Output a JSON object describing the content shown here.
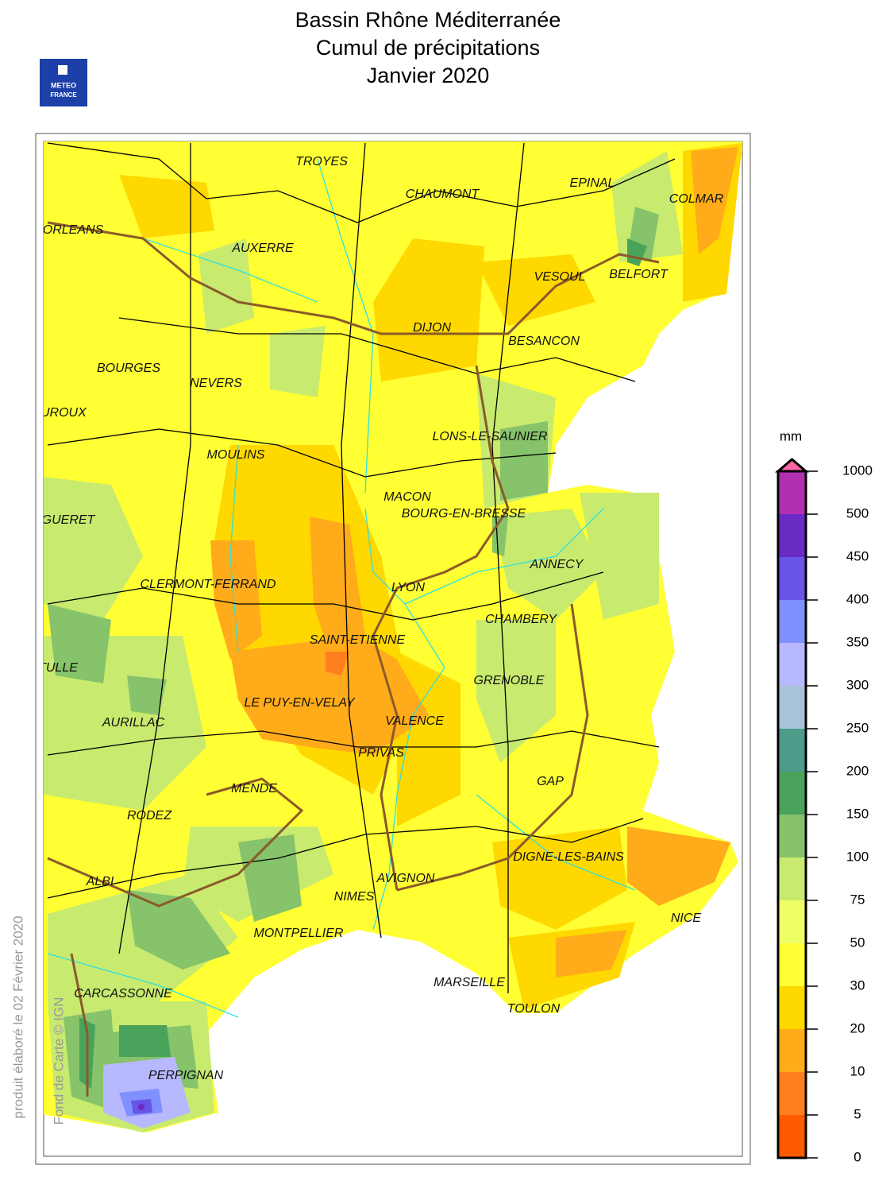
{
  "title": [
    "Bassin Rhône Méditerranée",
    "Cumul de précipitations",
    "Janvier 2020"
  ],
  "logo": [
    "METEO",
    "FRANCE"
  ],
  "credits": {
    "produced": "produit élaboré le 02 Février 2020",
    "basemap": "Fond de Carte © IGN"
  },
  "cities": [
    "TROYES",
    "CHAUMONT",
    "EPINAL",
    "COLMAR",
    "ORLEANS",
    "AUXERRE",
    "VESOUL",
    "BELFORT",
    "DIJON",
    "BESANCON",
    "BOURGES",
    "NEVERS",
    "CHATEAUROUX",
    "LONS-LE-SAUNIER",
    "MOULINS",
    "MACON",
    "BOURG-EN-BRESSE",
    "GUERET",
    "ANNECY",
    "CLERMONT-FERRAND",
    "LYON",
    "CHAMBERY",
    "SAINT-ETIENNE",
    "TULLE",
    "GRENOBLE",
    "LE PUY-EN-VELAY",
    "AURILLAC",
    "VALENCE",
    "PRIVAS",
    "GAP",
    "MENDE",
    "RODEZ",
    "DIGNE-LES-BAINS",
    "ALBI",
    "AVIGNON",
    "NIMES",
    "NICE",
    "MONTPELLIER",
    "CARCASSONNE",
    "MARSEILLE",
    "TOULON",
    "PERPIGNAN"
  ],
  "legend": {
    "unit": "mm",
    "ticks": [
      0,
      5,
      10,
      20,
      30,
      50,
      75,
      100,
      150,
      200,
      250,
      300,
      350,
      400,
      450,
      500,
      1000
    ],
    "colors": [
      "#ff5a00",
      "#ff7f1f",
      "#ffab1a",
      "#ffd800",
      "#ffff33",
      "#eeff66",
      "#c8ea6e",
      "#86c36a",
      "#49a35a",
      "#4b9c88",
      "#a8c3d9",
      "#b8b8ff",
      "#8090ff",
      "#6655e6",
      "#6a2bc4",
      "#b030b0"
    ],
    "over_color": "#ff66aa"
  }
}
